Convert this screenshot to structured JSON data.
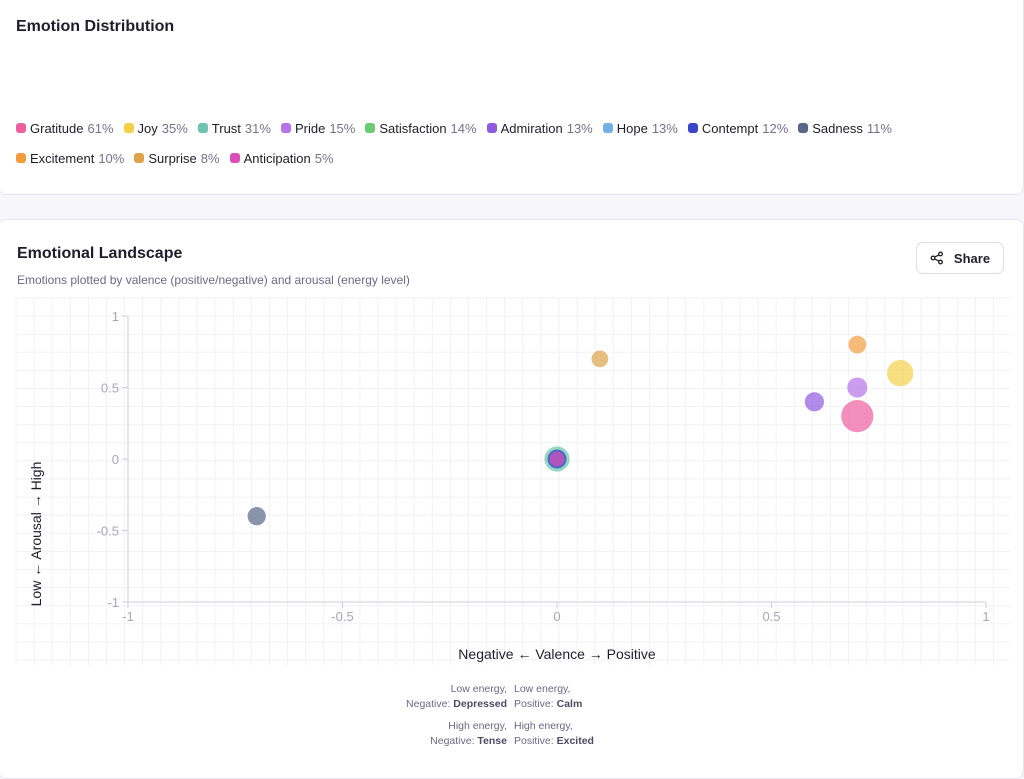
{
  "distribution": {
    "title": "Emotion Distribution",
    "items": [
      {
        "name": "Gratitude",
        "pct": "61%",
        "color": "#ec5fa0"
      },
      {
        "name": "Joy",
        "pct": "35%",
        "color": "#f4d04a"
      },
      {
        "name": "Trust",
        "pct": "31%",
        "color": "#6cc4b1"
      },
      {
        "name": "Pride",
        "pct": "15%",
        "color": "#b672e8"
      },
      {
        "name": "Satisfaction",
        "pct": "14%",
        "color": "#6acb72"
      },
      {
        "name": "Admiration",
        "pct": "13%",
        "color": "#9159dd"
      },
      {
        "name": "Hope",
        "pct": "13%",
        "color": "#71aee6"
      },
      {
        "name": "Contempt",
        "pct": "12%",
        "color": "#3a46c8"
      },
      {
        "name": "Sadness",
        "pct": "11%",
        "color": "#586688"
      },
      {
        "name": "Excitement",
        "pct": "10%",
        "color": "#f29c40"
      },
      {
        "name": "Surprise",
        "pct": "8%",
        "color": "#dca44a"
      },
      {
        "name": "Anticipation",
        "pct": "5%",
        "color": "#d94fb5"
      }
    ]
  },
  "landscape": {
    "title": "Emotional Landscape",
    "subtitle": "Emotions plotted by valence (positive/negative) and arousal (energy level)",
    "share_label": "Share"
  },
  "chart_data": {
    "type": "scatter",
    "xlabel": "Negative ← Valence → Positive",
    "ylabel": "Low ← Arousal → High",
    "xlim": [
      -1,
      1
    ],
    "ylim": [
      -1,
      1
    ],
    "xticks": [
      "-1",
      "-0.5",
      "0",
      "0.5",
      "1"
    ],
    "yticks": [
      "1",
      "0.5",
      "0",
      "-0.5",
      "-1"
    ],
    "grid": true,
    "points": [
      {
        "name": "Trust",
        "x": 0,
        "y": 0,
        "size": 31,
        "color": "#6cc4b1"
      },
      {
        "name": "Satisfaction",
        "x": 0,
        "y": 0,
        "size": 14,
        "color": "#6acb72"
      },
      {
        "name": "Hope",
        "x": 0,
        "y": 0,
        "size": 13,
        "color": "#71aee6"
      },
      {
        "name": "Contempt",
        "x": 0,
        "y": 0,
        "size": 12,
        "color": "#3a46c8"
      },
      {
        "name": "Anticipation",
        "x": 0,
        "y": 0,
        "size": 5,
        "color": "#d94fb5"
      },
      {
        "name": "Surprise",
        "x": 0.1,
        "y": 0.7,
        "size": 8,
        "color": "#dca44a"
      },
      {
        "name": "Sadness",
        "x": -0.7,
        "y": -0.4,
        "size": 11,
        "color": "#586688"
      },
      {
        "name": "Excitement",
        "x": 0.7,
        "y": 0.8,
        "size": 10,
        "color": "#f29c40"
      },
      {
        "name": "Joy",
        "x": 0.8,
        "y": 0.6,
        "size": 35,
        "color": "#f4d04a"
      },
      {
        "name": "Pride",
        "x": 0.7,
        "y": 0.5,
        "size": 15,
        "color": "#b672e8"
      },
      {
        "name": "Admiration",
        "x": 0.6,
        "y": 0.4,
        "size": 13,
        "color": "#9159dd"
      },
      {
        "name": "Gratitude",
        "x": 0.7,
        "y": 0.3,
        "size": 61,
        "color": "#ec5fa0"
      }
    ]
  },
  "quadrants": {
    "q1a": "Low energy,",
    "q1b": "Negative:",
    "q1c": "Depressed",
    "q2a": "Low energy,",
    "q2b": "Positive:",
    "q2c": "Calm",
    "q3a": "High energy,",
    "q3b": "Negative:",
    "q3c": "Tense",
    "q4a": "High energy,",
    "q4b": "Positive:",
    "q4c": "Excited"
  }
}
